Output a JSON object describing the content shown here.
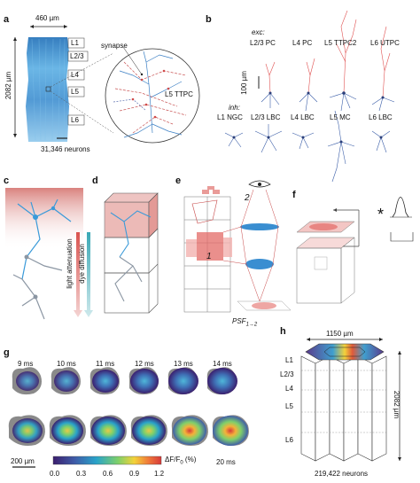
{
  "panels": {
    "a": {
      "letter": "a",
      "width_label": "460 µm",
      "height_label": "2082 µm",
      "layers": [
        "L1",
        "L2/3",
        "L4",
        "L5",
        "L6"
      ],
      "synapse_label": "synapse",
      "cell_label": "L5 TTPC",
      "neuron_count": "31,346 neurons"
    },
    "b": {
      "letter": "b",
      "exc_title": "exc:",
      "exc_types": [
        "L2/3 PC",
        "L4 PC",
        "L5 TTPC2",
        "L6 UTPC"
      ],
      "scale_label": "100 µm",
      "inh_title": "inh:",
      "inh_types": [
        "L1 NGC",
        "L2/3 LBC",
        "L4 LBC",
        "L5 MC",
        "L6 LBC"
      ]
    },
    "c": {
      "letter": "c",
      "attenuation_label": "light attenuation",
      "diffusion_label": "dye diffusion"
    },
    "d": {
      "letter": "d"
    },
    "e": {
      "letter": "e",
      "voxel_1": "1",
      "voxel_2": "2",
      "psf_label": "PSF",
      "psf_sub": "1→2"
    },
    "f": {
      "letter": "f",
      "convolve_symbol": "*"
    },
    "g": {
      "letter": "g",
      "times": [
        "9 ms",
        "10 ms",
        "11 ms",
        "12 ms",
        "13 ms",
        "14 ms"
      ],
      "last_time": "20 ms",
      "scale_label": "200 µm",
      "colorbar_ticks": [
        "0.0",
        "0.3",
        "0.6",
        "0.9",
        "1.2"
      ],
      "colorbar_label": "ΔF/F",
      "colorbar_sub": "0",
      "colorbar_unit": "(%)",
      "colormap": [
        "#3b1f6e",
        "#3f5ca8",
        "#29a3c9",
        "#7fd06a",
        "#f3d23a",
        "#f07a3a",
        "#d63a3a"
      ]
    },
    "h": {
      "letter": "h",
      "width_label": "1150 µm",
      "height_label": "2082 µm",
      "layers": [
        "L1",
        "L2/3",
        "L4",
        "L5",
        "L6"
      ],
      "neuron_count": "219,422 neurons"
    }
  },
  "colors": {
    "exc": "#e05252",
    "inh": "#3b5ea8",
    "neuron_blue": "#3a9ad9"
  }
}
